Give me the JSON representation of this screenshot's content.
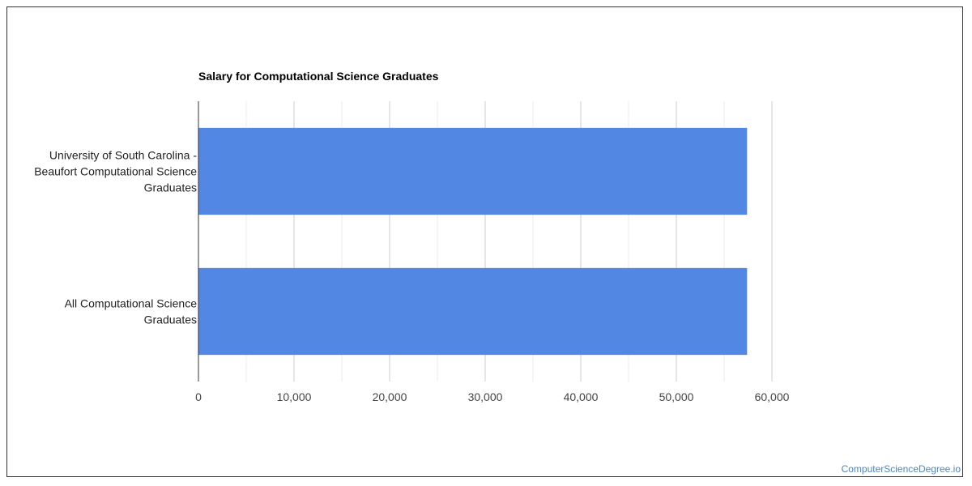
{
  "chart_data": {
    "type": "bar",
    "orientation": "horizontal",
    "title": "Salary for Computational Science Graduates",
    "categories": [
      [
        "University of South Carolina -",
        "Beaufort Computational Science",
        "Graduates"
      ],
      [
        "All Computational Science",
        "Graduates"
      ]
    ],
    "values": [
      57400,
      57400
    ],
    "xlim": [
      0,
      60000
    ],
    "ticks": [
      "0",
      "10,000",
      "20,000",
      "30,000",
      "40,000",
      "50,000",
      "60,000"
    ],
    "tick_values": [
      0,
      10000,
      20000,
      30000,
      40000,
      50000,
      60000
    ],
    "grid": true,
    "bar_color": "#5387e4"
  },
  "watermark": "ComputerScienceDegree.io"
}
